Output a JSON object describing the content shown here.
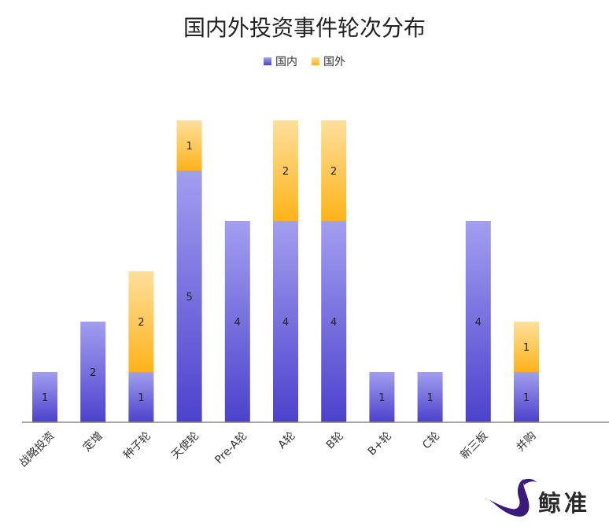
{
  "chart_data": {
    "type": "bar",
    "stacked": true,
    "title": "国内外投资事件轮次分布",
    "categories": [
      "战略投资",
      "定增",
      "种子轮",
      "天使轮",
      "Pre-A轮",
      "A轮",
      "B轮",
      "B+轮",
      "C轮",
      "新三板",
      "并购"
    ],
    "series": [
      {
        "name": "国内",
        "values": [
          1,
          2,
          1,
          5,
          4,
          4,
          4,
          1,
          1,
          4,
          1
        ],
        "color": "#6f68de"
      },
      {
        "name": "国外",
        "values": [
          0,
          0,
          2,
          1,
          0,
          2,
          2,
          0,
          0,
          0,
          1
        ],
        "color": "#ffc04a"
      }
    ],
    "ylim": [
      0,
      6
    ],
    "grid": false,
    "legend": "top-center"
  },
  "brand": {
    "name": "鲸准"
  }
}
